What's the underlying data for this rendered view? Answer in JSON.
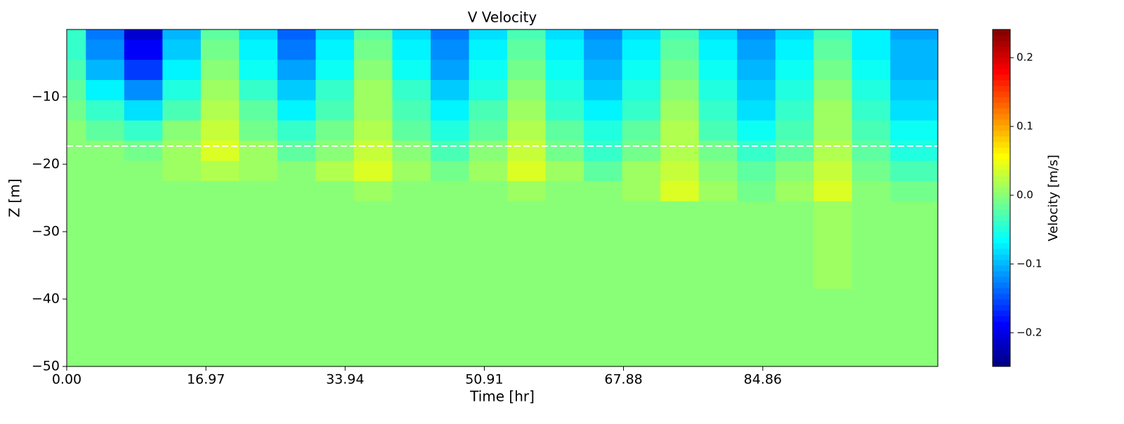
{
  "chart_data": {
    "type": "contour",
    "title": "V Velocity",
    "xlabel": "Time [hr]",
    "ylabel": "Z [m]",
    "colorbar_label": "Velocity [m/s]",
    "colormap": "jet",
    "xlim": [
      0,
      106.2
    ],
    "ylim": [
      -50,
      0
    ],
    "xticks": [
      {
        "value": 0,
        "label": "0.00"
      },
      16.97,
      33.94,
      50.91,
      67.88,
      84.86
    ],
    "yticks": [
      {
        "value": -10,
        "label": "−10"
      },
      {
        "value": -20,
        "label": "−20"
      },
      {
        "value": -30,
        "label": "−30"
      },
      {
        "value": -40,
        "label": "−40"
      },
      {
        "value": -50,
        "label": "−50"
      }
    ],
    "clim": [
      -0.249,
      0.241
    ],
    "cticks": [
      {
        "value": -0.2,
        "label": "−0.2"
      },
      {
        "value": -0.1,
        "label": "−0.1"
      },
      {
        "value": 0,
        "label": "0.0"
      },
      {
        "value": 0.1,
        "label": "0.1"
      },
      {
        "value": 0.2,
        "label": "0.2"
      }
    ],
    "hline": {
      "y": -17.3,
      "color": "#ffffff",
      "style": "dashed"
    },
    "x": [
      0,
      4.67,
      9.34,
      14.01,
      18.68,
      23.35,
      28.02,
      32.69,
      37.36,
      42.03,
      46.7,
      51.37,
      56.04,
      60.71,
      65.38,
      70.05,
      74.72,
      79.39,
      84.06,
      88.73,
      93.4,
      98.07,
      102.74
    ],
    "z": [
      0,
      -3,
      -6,
      -9,
      -12,
      -15,
      -18,
      -21,
      -24,
      -27,
      -50
    ],
    "values": [
      [
        -0.04,
        -0.04,
        -0.03,
        -0.02,
        -0.01,
        0,
        0,
        0,
        0,
        0,
        0
      ],
      [
        -0.13,
        -0.12,
        -0.1,
        -0.07,
        -0.04,
        -0.02,
        0,
        0,
        0,
        0,
        0
      ],
      [
        -0.21,
        -0.19,
        -0.16,
        -0.12,
        -0.08,
        -0.04,
        -0.01,
        0,
        0,
        0,
        0
      ],
      [
        -0.1,
        -0.09,
        -0.07,
        -0.05,
        -0.03,
        0,
        0.01,
        0.01,
        0,
        0,
        0
      ],
      [
        -0.02,
        -0.01,
        0,
        0.01,
        0.02,
        0.03,
        0.04,
        0.02,
        0,
        0,
        0
      ],
      [
        -0.08,
        -0.07,
        -0.06,
        -0.04,
        -0.02,
        -0.01,
        0.01,
        0.01,
        0,
        0,
        0
      ],
      [
        -0.14,
        -0.13,
        -0.11,
        -0.09,
        -0.07,
        -0.04,
        -0.02,
        0,
        0,
        0,
        0
      ],
      [
        -0.08,
        -0.07,
        -0.06,
        -0.04,
        -0.03,
        -0.01,
        0,
        0.02,
        0,
        0,
        0
      ],
      [
        -0.02,
        -0.01,
        0,
        0.01,
        0.01,
        0.02,
        0.03,
        0.04,
        0.01,
        0,
        0
      ],
      [
        -0.08,
        -0.07,
        -0.06,
        -0.04,
        -0.03,
        -0.02,
        0,
        0.01,
        0,
        0,
        0
      ],
      [
        -0.13,
        -0.12,
        -0.11,
        -0.09,
        -0.07,
        -0.05,
        -0.03,
        -0.01,
        0,
        0,
        0
      ],
      [
        -0.08,
        -0.07,
        -0.06,
        -0.05,
        -0.03,
        -0.02,
        0,
        0.01,
        0,
        0,
        0
      ],
      [
        -0.03,
        -0.02,
        -0.01,
        0,
        0.01,
        0.02,
        0.03,
        0.04,
        0.01,
        0,
        0
      ],
      [
        -0.08,
        -0.07,
        -0.06,
        -0.05,
        -0.04,
        -0.02,
        -0.01,
        0.01,
        0,
        0,
        0
      ],
      [
        -0.12,
        -0.11,
        -0.1,
        -0.09,
        -0.07,
        -0.05,
        -0.04,
        -0.02,
        0,
        0,
        0
      ],
      [
        -0.08,
        -0.07,
        -0.06,
        -0.05,
        -0.04,
        -0.02,
        -0.01,
        0.01,
        0.01,
        0,
        0
      ],
      [
        -0.03,
        -0.02,
        -0.01,
        0,
        0.01,
        0.02,
        0.02,
        0.03,
        0.04,
        0,
        0
      ],
      [
        -0.08,
        -0.07,
        -0.06,
        -0.05,
        -0.04,
        -0.03,
        -0.01,
        0,
        0.01,
        0,
        0
      ],
      [
        -0.12,
        -0.11,
        -0.1,
        -0.09,
        -0.08,
        -0.06,
        -0.04,
        -0.02,
        -0.01,
        0,
        0
      ],
      [
        -0.08,
        -0.07,
        -0.06,
        -0.05,
        -0.04,
        -0.03,
        -0.02,
        0,
        0.01,
        0,
        0
      ],
      [
        -0.03,
        -0.02,
        -0.01,
        0,
        0.01,
        0.01,
        0.02,
        0.03,
        0.04,
        0.01,
        0
      ],
      [
        -0.07,
        -0.07,
        -0.06,
        -0.05,
        -0.04,
        -0.03,
        -0.02,
        -0.01,
        0,
        0,
        0
      ],
      [
        -0.11,
        -0.1,
        -0.1,
        -0.09,
        -0.08,
        -0.06,
        -0.05,
        -0.03,
        -0.01,
        0,
        0
      ]
    ]
  }
}
